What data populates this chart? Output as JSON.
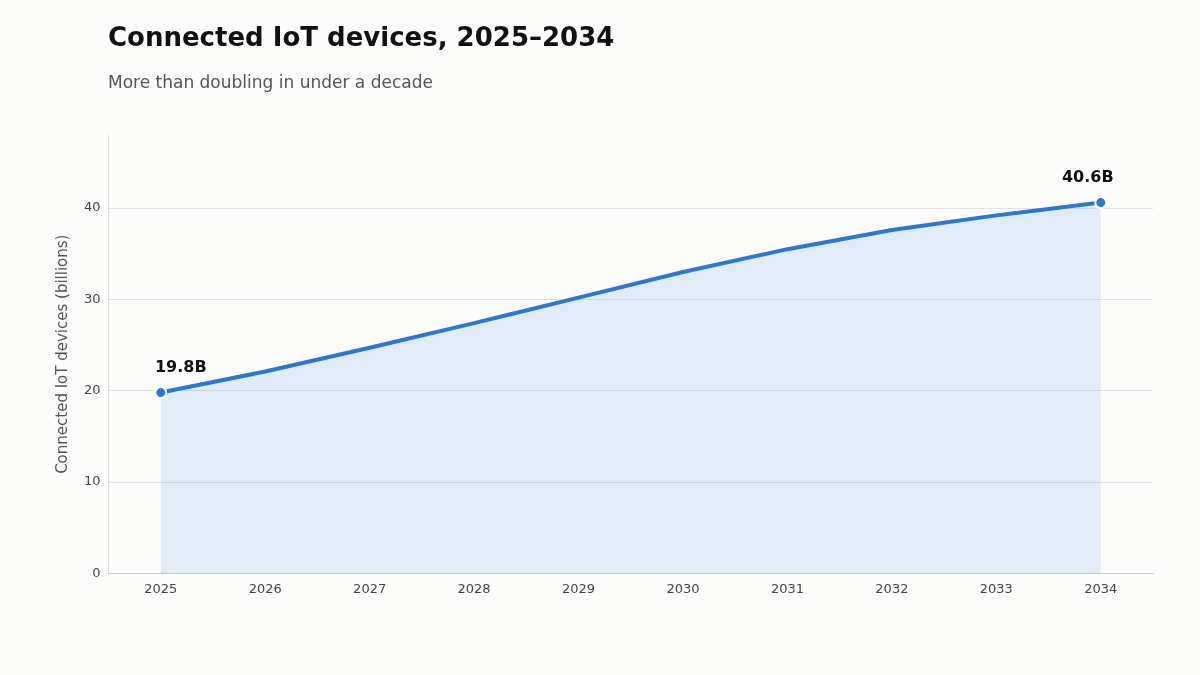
{
  "chart_data": {
    "type": "area",
    "title": "Connected IoT devices, 2025–2034",
    "subtitle": "More than doubling in under a decade",
    "ylabel": "Connected IoT devices (billions)",
    "categories": [
      "2025",
      "2026",
      "2027",
      "2028",
      "2029",
      "2030",
      "2031",
      "2032",
      "2033",
      "2034"
    ],
    "series": [
      {
        "color": "#2a78d6",
        "values": [
          19.8,
          22.1,
          24.7,
          27.4,
          30.2,
          33.0,
          35.5,
          37.6,
          39.2,
          40.6
        ]
      }
    ],
    "ylim": [
      0,
      48
    ],
    "yticks": [
      0,
      10,
      20,
      30,
      40
    ],
    "grid": "y",
    "legend": false,
    "marker": "none",
    "line_style": "solid",
    "annotations": [
      {
        "text": "19.8B",
        "x": "2025",
        "y": 19.8
      },
      {
        "text": "40.6B",
        "x": "2034",
        "y": 40.6
      }
    ]
  }
}
